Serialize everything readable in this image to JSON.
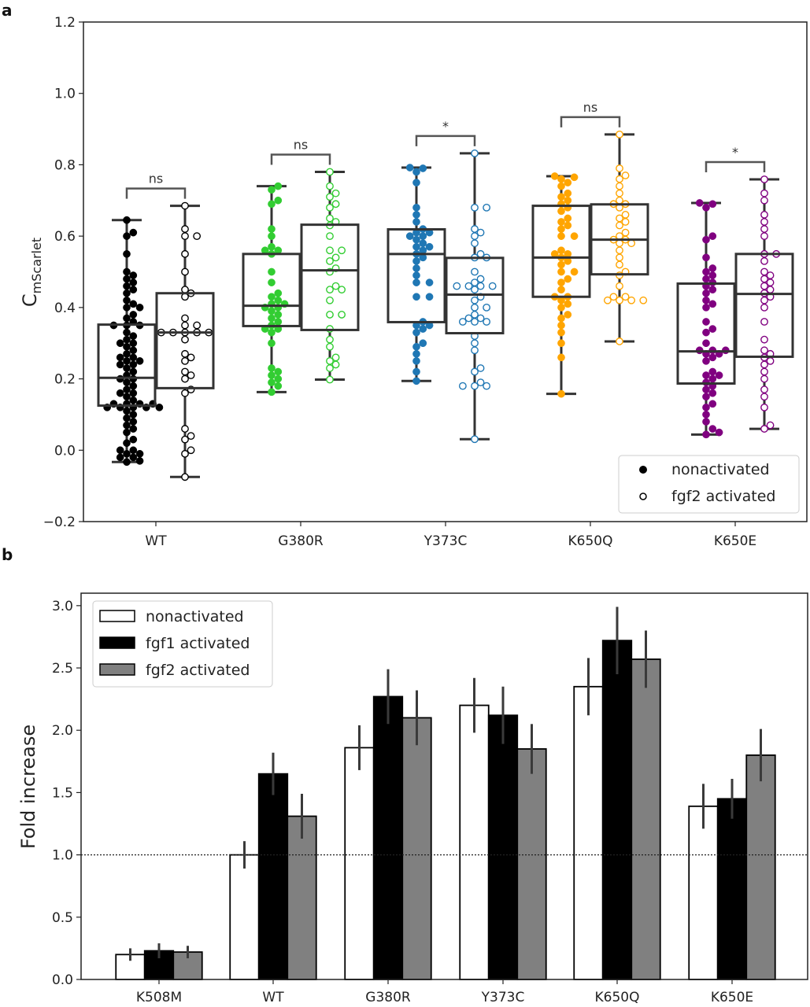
{
  "chart_data": [
    {
      "panel_label": "a",
      "type": "box",
      "ylabel": "C",
      "ylabel_subscript": "mScarlet",
      "ylim": [
        -0.2,
        1.2
      ],
      "yticks": [
        -0.2,
        0.0,
        0.2,
        0.4,
        0.6,
        0.8,
        1.0,
        1.2
      ],
      "ytick_labels": [
        "−0.2",
        "0.0",
        "0.2",
        "0.4",
        "0.6",
        "0.8",
        "1.0",
        "1.2"
      ],
      "categories": [
        "WT",
        "G380R",
        "Y373C",
        "K650Q",
        "K650E"
      ],
      "colors": [
        "#000000",
        "#32cd32",
        "#1f77b4",
        "#ffa500",
        "#800080"
      ],
      "legend": {
        "position": "lower-right",
        "entries": [
          {
            "label": "nonactivated",
            "marker": "filled-circle"
          },
          {
            "label": "fgf2 activated",
            "marker": "open-circle"
          }
        ]
      },
      "significance": [
        "ns",
        "ns",
        "*",
        "ns",
        "*"
      ],
      "groups": [
        {
          "category": "WT",
          "nonactivated": {
            "whislo": -0.033,
            "q1": 0.125,
            "med": 0.203,
            "q3": 0.352,
            "whishi": 0.645,
            "points": [
              0.645,
              0.61,
              0.6,
              0.55,
              0.5,
              0.49,
              0.48,
              0.47,
              0.46,
              0.45,
              0.44,
              0.42,
              0.41,
              0.4,
              0.4,
              0.38,
              0.37,
              0.36,
              0.35,
              0.35,
              0.35,
              0.33,
              0.32,
              0.31,
              0.3,
              0.3,
              0.29,
              0.28,
              0.27,
              0.26,
              0.26,
              0.25,
              0.25,
              0.24,
              0.24,
              0.23,
              0.22,
              0.21,
              0.2,
              0.2,
              0.19,
              0.18,
              0.17,
              0.16,
              0.16,
              0.15,
              0.14,
              0.13,
              0.13,
              0.13,
              0.13,
              0.12,
              0.12,
              0.12,
              0.12,
              0.12,
              0.11,
              0.1,
              0.09,
              0.08,
              0.07,
              0.06,
              0.05,
              0.03,
              0.02,
              0.0,
              0.0,
              -0.01,
              -0.01,
              -0.02,
              -0.02,
              -0.03,
              -0.033
            ]
          },
          "fgf2_activated": {
            "whislo": -0.075,
            "q1": 0.174,
            "med": 0.33,
            "q3": 0.44,
            "whishi": 0.685,
            "points": [
              0.685,
              0.62,
              0.6,
              0.6,
              0.55,
              0.5,
              0.45,
              0.44,
              0.43,
              0.37,
              0.35,
              0.35,
              0.33,
              0.33,
              0.33,
              0.33,
              0.33,
              0.31,
              0.27,
              0.26,
              0.25,
              0.22,
              0.21,
              0.2,
              0.17,
              0.16,
              0.06,
              0.04,
              0.03,
              0.0,
              -0.01,
              -0.075
            ]
          }
        },
        {
          "category": "G380R",
          "nonactivated": {
            "whislo": 0.163,
            "q1": 0.348,
            "med": 0.405,
            "q3": 0.55,
            "whishi": 0.74,
            "points": [
              0.74,
              0.73,
              0.7,
              0.69,
              0.62,
              0.6,
              0.57,
              0.56,
              0.56,
              0.55,
              0.5,
              0.47,
              0.44,
              0.43,
              0.42,
              0.41,
              0.41,
              0.4,
              0.4,
              0.39,
              0.38,
              0.37,
              0.36,
              0.35,
              0.34,
              0.34,
              0.33,
              0.3,
              0.23,
              0.22,
              0.21,
              0.2,
              0.19,
              0.18,
              0.163
            ]
          },
          "fgf2_activated": {
            "whislo": 0.198,
            "q1": 0.337,
            "med": 0.504,
            "q3": 0.632,
            "whishi": 0.78,
            "points": [
              0.78,
              0.74,
              0.72,
              0.71,
              0.69,
              0.68,
              0.65,
              0.64,
              0.63,
              0.6,
              0.56,
              0.56,
              0.54,
              0.53,
              0.51,
              0.5,
              0.46,
              0.45,
              0.45,
              0.42,
              0.38,
              0.38,
              0.34,
              0.31,
              0.29,
              0.26,
              0.25,
              0.24,
              0.23,
              0.198
            ]
          }
        },
        {
          "category": "Y373C",
          "nonactivated": {
            "whislo": 0.194,
            "q1": 0.359,
            "med": 0.55,
            "q3": 0.619,
            "whishi": 0.792,
            "points": [
              0.792,
              0.79,
              0.78,
              0.75,
              0.68,
              0.66,
              0.64,
              0.62,
              0.61,
              0.61,
              0.6,
              0.6,
              0.59,
              0.58,
              0.57,
              0.57,
              0.56,
              0.55,
              0.54,
              0.53,
              0.51,
              0.49,
              0.47,
              0.47,
              0.43,
              0.43,
              0.36,
              0.35,
              0.35,
              0.34,
              0.33,
              0.3,
              0.29,
              0.27,
              0.25,
              0.22,
              0.194
            ]
          },
          "fgf2_activated": {
            "whislo": 0.031,
            "q1": 0.328,
            "med": 0.436,
            "q3": 0.539,
            "whishi": 0.832,
            "points": [
              0.832,
              0.68,
              0.68,
              0.62,
              0.61,
              0.6,
              0.58,
              0.55,
              0.54,
              0.54,
              0.5,
              0.48,
              0.47,
              0.46,
              0.46,
              0.46,
              0.46,
              0.45,
              0.43,
              0.42,
              0.4,
              0.4,
              0.38,
              0.37,
              0.37,
              0.36,
              0.36,
              0.36,
              0.32,
              0.3,
              0.28,
              0.23,
              0.22,
              0.19,
              0.18,
              0.18,
              0.18,
              0.031
            ]
          }
        },
        {
          "category": "K650Q",
          "nonactivated": {
            "whislo": 0.158,
            "q1": 0.43,
            "med": 0.54,
            "q3": 0.685,
            "whishi": 0.768,
            "points": [
              0.768,
              0.765,
              0.76,
              0.75,
              0.74,
              0.72,
              0.71,
              0.7,
              0.69,
              0.68,
              0.67,
              0.65,
              0.64,
              0.63,
              0.62,
              0.6,
              0.6,
              0.56,
              0.55,
              0.55,
              0.54,
              0.53,
              0.52,
              0.5,
              0.5,
              0.48,
              0.47,
              0.45,
              0.43,
              0.43,
              0.42,
              0.41,
              0.4,
              0.38,
              0.37,
              0.35,
              0.33,
              0.3,
              0.26,
              0.158
            ]
          },
          "fgf2_activated": {
            "whislo": 0.305,
            "q1": 0.493,
            "med": 0.59,
            "q3": 0.689,
            "whishi": 0.885,
            "points": [
              0.885,
              0.79,
              0.77,
              0.76,
              0.74,
              0.72,
              0.7,
              0.69,
              0.69,
              0.68,
              0.66,
              0.65,
              0.64,
              0.63,
              0.61,
              0.6,
              0.59,
              0.59,
              0.58,
              0.58,
              0.56,
              0.54,
              0.52,
              0.5,
              0.49,
              0.46,
              0.43,
              0.43,
              0.42,
              0.42,
              0.42,
              0.42,
              0.305
            ]
          }
        },
        {
          "category": "K650E",
          "nonactivated": {
            "whislo": 0.044,
            "q1": 0.187,
            "med": 0.277,
            "q3": 0.467,
            "whishi": 0.693,
            "points": [
              0.693,
              0.69,
              0.68,
              0.6,
              0.59,
              0.54,
              0.51,
              0.5,
              0.49,
              0.48,
              0.47,
              0.46,
              0.45,
              0.44,
              0.42,
              0.41,
              0.4,
              0.36,
              0.34,
              0.33,
              0.3,
              0.28,
              0.28,
              0.28,
              0.27,
              0.27,
              0.26,
              0.25,
              0.22,
              0.21,
              0.21,
              0.2,
              0.19,
              0.18,
              0.17,
              0.16,
              0.15,
              0.13,
              0.12,
              0.1,
              0.08,
              0.06,
              0.05,
              0.044
            ]
          },
          "fgf2_activated": {
            "whislo": 0.06,
            "q1": 0.262,
            "med": 0.438,
            "q3": 0.55,
            "whishi": 0.759,
            "points": [
              0.759,
              0.72,
              0.7,
              0.66,
              0.64,
              0.62,
              0.6,
              0.55,
              0.55,
              0.53,
              0.5,
              0.49,
              0.48,
              0.47,
              0.46,
              0.45,
              0.44,
              0.43,
              0.42,
              0.4,
              0.36,
              0.31,
              0.28,
              0.27,
              0.26,
              0.25,
              0.24,
              0.22,
              0.2,
              0.17,
              0.15,
              0.12,
              0.07,
              0.06
            ]
          }
        }
      ]
    },
    {
      "panel_label": "b",
      "type": "bar",
      "ylabel": "Fold increase",
      "xlabel": "",
      "ylim": [
        0,
        3.1
      ],
      "yticks": [
        0.0,
        0.5,
        1.0,
        1.5,
        2.0,
        2.5,
        3.0
      ],
      "ytick_labels": [
        "0.0",
        "0.5",
        "1.0",
        "1.5",
        "2.0",
        "2.5",
        "3.0"
      ],
      "reference_line": 1.0,
      "categories": [
        "K508M",
        "WT",
        "G380R",
        "Y373C",
        "K650Q",
        "K650E"
      ],
      "legend": {
        "position": "top-left"
      },
      "series": [
        {
          "name": "nonactivated",
          "color": "#ffffff",
          "values": [
            0.2,
            1.0,
            1.86,
            2.2,
            2.35,
            1.39
          ],
          "errors": [
            0.05,
            0.11,
            0.18,
            0.22,
            0.23,
            0.18
          ]
        },
        {
          "name": "fgf1 activated",
          "color": "#000000",
          "values": [
            0.23,
            1.65,
            2.27,
            2.12,
            2.72,
            1.45
          ],
          "errors": [
            0.06,
            0.17,
            0.22,
            0.23,
            0.27,
            0.16
          ]
        },
        {
          "name": "fgf2 activated",
          "color": "#808080",
          "values": [
            0.22,
            1.31,
            2.1,
            1.85,
            2.57,
            1.8
          ],
          "errors": [
            0.05,
            0.18,
            0.22,
            0.2,
            0.23,
            0.21
          ]
        }
      ]
    }
  ]
}
